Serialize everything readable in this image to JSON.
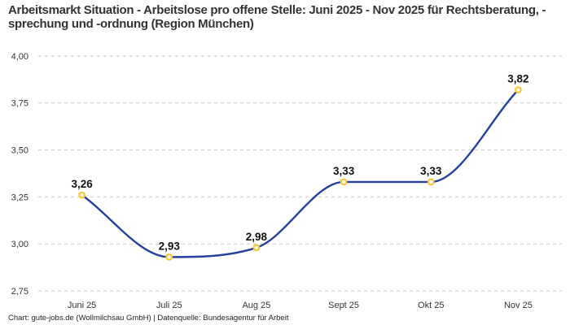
{
  "title": "Arbeitsmarkt Situation - Arbeitslose pro offene Stelle: Juni 2025 - Nov 2025 für Rechtsberatung, -sprechung und -ordnung (Region München)",
  "footer": "Chart: gute-jobs.de (Wollmilchsau GmbH) | Datenquelle: Bundesagentur für Arbeit",
  "chart_data": {
    "type": "line",
    "title": "Arbeitsmarkt Situation - Arbeitslose pro offene Stelle: Juni 2025 - Nov 2025 für Rechtsberatung, -sprechung und -ordnung (Region München)",
    "xlabel": "",
    "ylabel": "",
    "categories": [
      "Juni 25",
      "Juli 25",
      "Aug 25",
      "Sept 25",
      "Okt 25",
      "Nov 25"
    ],
    "values": [
      3.26,
      2.93,
      2.98,
      3.33,
      3.33,
      3.82
    ],
    "value_labels": [
      "3,26",
      "2,93",
      "2,98",
      "3,33",
      "3,33",
      "3,82"
    ],
    "y_ticks": [
      "4,00",
      "3,75",
      "3,50",
      "3,25",
      "3,00",
      "2,75"
    ],
    "y_tick_values": [
      4.0,
      3.75,
      3.5,
      3.25,
      3.0,
      2.75
    ],
    "ylim": [
      2.75,
      4.0
    ],
    "grid": "horizontal-dashed",
    "legend": "none",
    "curve": "smooth-monotone",
    "colors": {
      "line": "#24409e",
      "marker_ring": "#fdc330",
      "marker_fill": "#ffffff",
      "grid": "#c9c9c9",
      "axis_text": "#333333",
      "data_label": "#111111",
      "title": "#333333",
      "footer": "#222222",
      "background": "#ffffff"
    }
  }
}
